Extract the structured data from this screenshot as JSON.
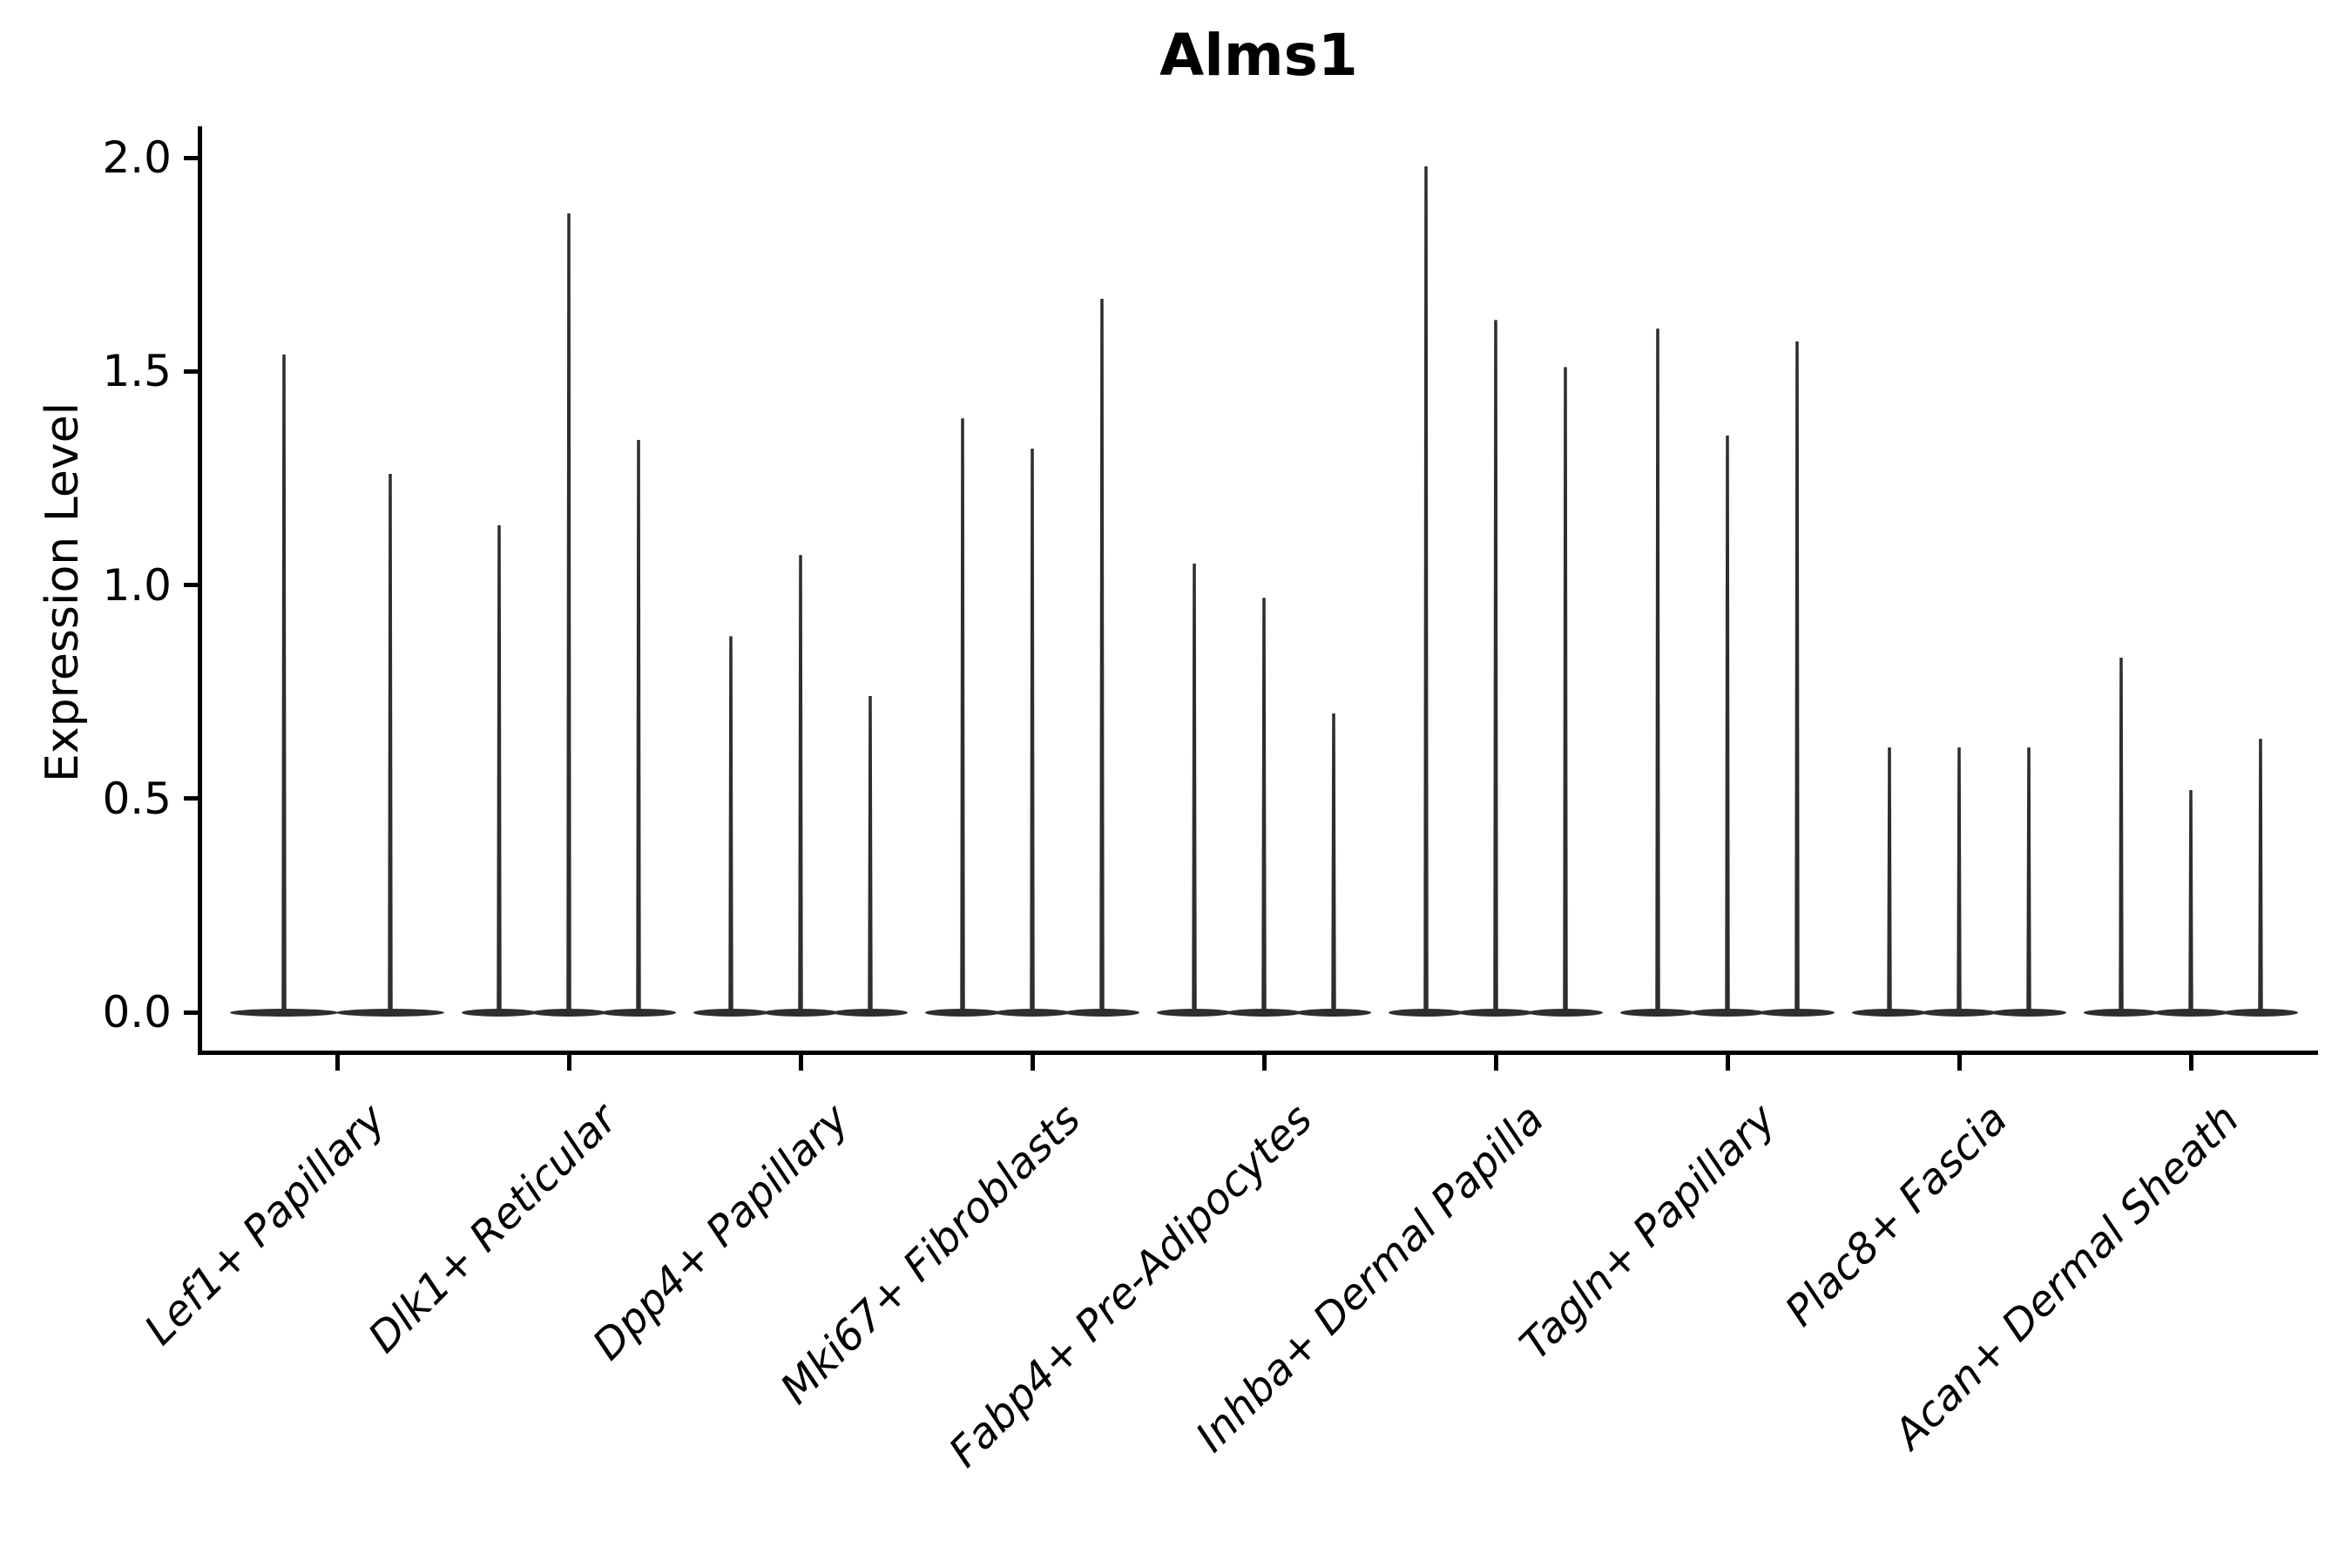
{
  "page": {
    "background": "#ffffff"
  },
  "chart_data": {
    "type": "violin",
    "title": "Alms1",
    "ylabel": "Expression Level",
    "xlabel": "",
    "ylim": [
      0,
      2.05
    ],
    "grid": false,
    "legend": null,
    "axis_color": "#000000",
    "violin_color": "#2e2e2e",
    "yticks": [
      {
        "value": 0.0,
        "label": "0.0"
      },
      {
        "value": 0.5,
        "label": "0.5"
      },
      {
        "value": 1.0,
        "label": "1.0"
      },
      {
        "value": 1.5,
        "label": "1.5"
      },
      {
        "value": 2.0,
        "label": "2.0"
      }
    ],
    "categories": [
      "Lef1+ Papillary",
      "Dlk1+ Reticular",
      "Dpp4+ Papillary",
      "Mki67+ Fibroblasts",
      "Fabp4+ Pre-Adipocytes",
      "Inhba+ Dermal Papilla",
      "Tagln+ Papillary",
      "Plac8+ Fascia",
      "Acan+ Dermal Sheath"
    ],
    "groups": [
      {
        "label": "Lef1+ Papillary",
        "violin_peaks": [
          1.54,
          1.26
        ]
      },
      {
        "label": "Dlk1+ Reticular",
        "violin_peaks": [
          1.14,
          1.87,
          1.34
        ]
      },
      {
        "label": "Dpp4+ Papillary",
        "violin_peaks": [
          0.88,
          1.07,
          0.74
        ]
      },
      {
        "label": "Mki67+ Fibroblasts",
        "violin_peaks": [
          1.39,
          1.32,
          1.67
        ]
      },
      {
        "label": "Fabp4+ Pre-Adipocytes",
        "violin_peaks": [
          1.05,
          0.97,
          0.7
        ]
      },
      {
        "label": "Inhba+ Dermal Papilla",
        "violin_peaks": [
          1.98,
          1.62,
          1.51
        ]
      },
      {
        "label": "Tagln+ Papillary",
        "violin_peaks": [
          1.6,
          1.35,
          1.57
        ]
      },
      {
        "label": "Plac8+ Fascia",
        "violin_peaks": [
          0.62,
          0.62,
          0.62
        ]
      },
      {
        "label": "Acan+ Dermal Sheath",
        "violin_peaks": [
          0.83,
          0.52,
          0.64
        ]
      }
    ]
  }
}
